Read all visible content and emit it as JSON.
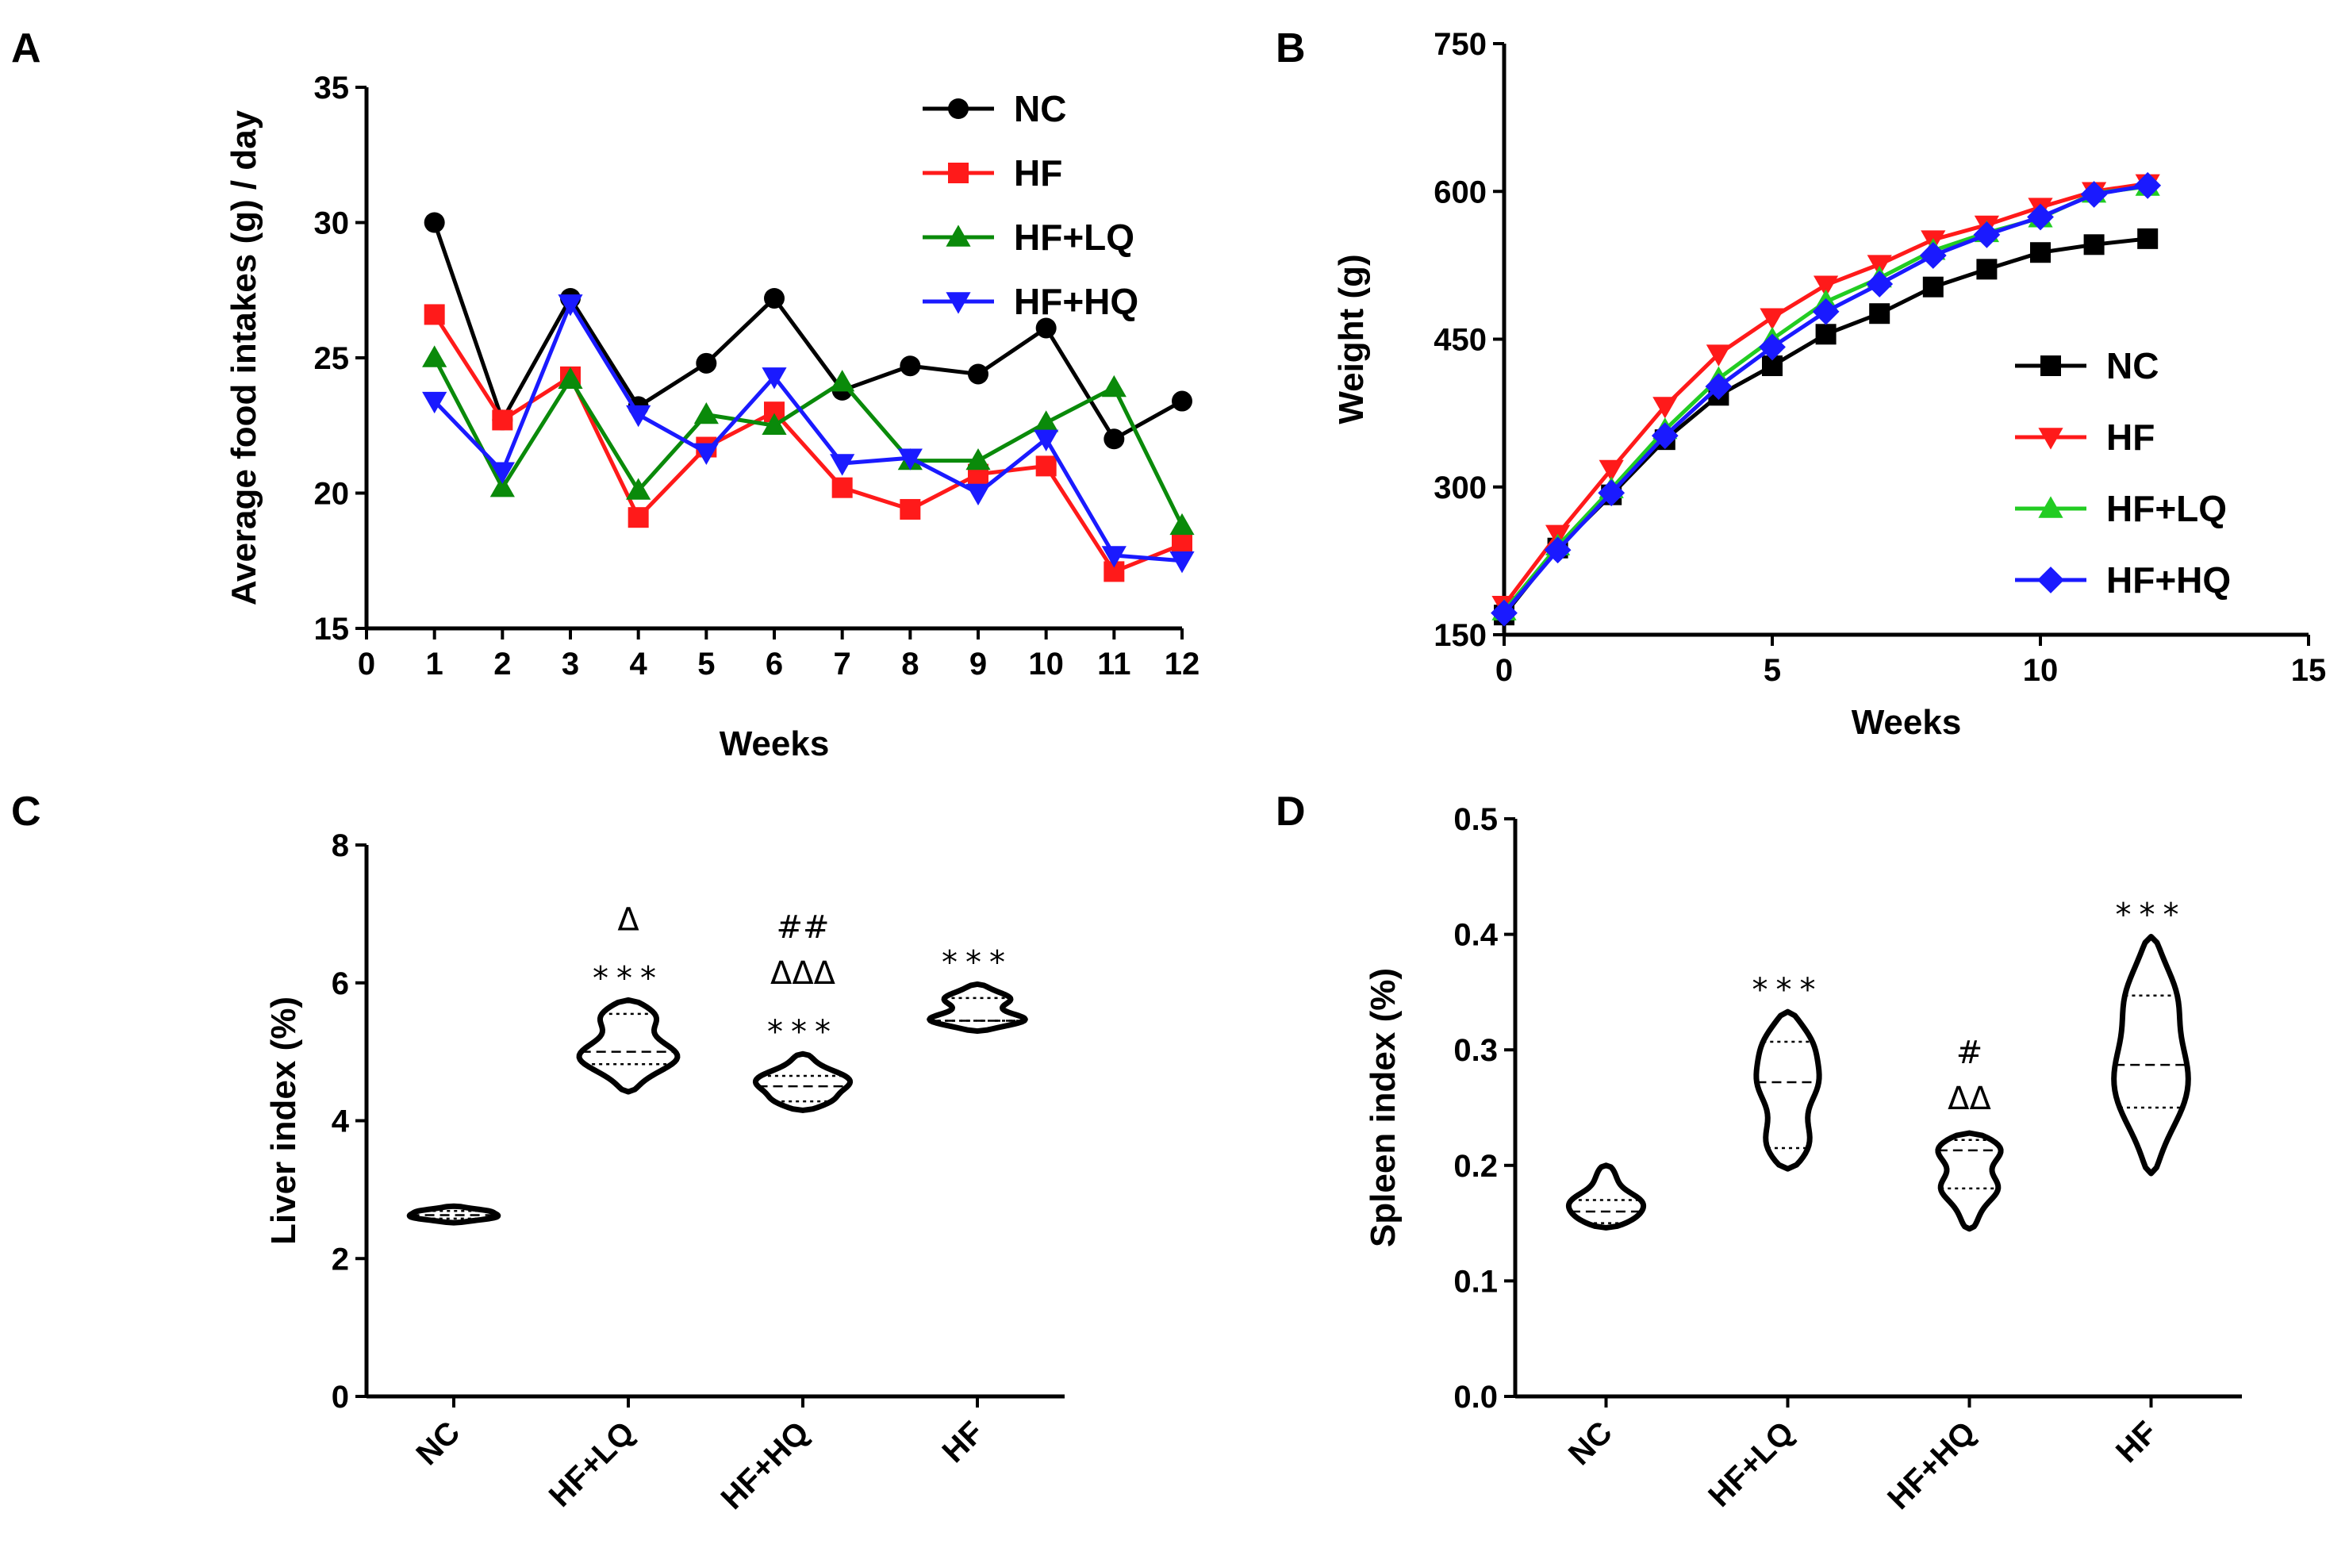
{
  "panels": {
    "A": "A",
    "B": "B",
    "C": "C",
    "D": "D"
  },
  "colors": {
    "NC": "#000000",
    "HF": "#ff1a1a",
    "HF+LQ": "#0a8a0a",
    "HF+HQ": "#1a1aff",
    "HF+LQ_B": "#22cc22"
  },
  "chart_data": [
    {
      "id": "A",
      "type": "line",
      "title": "",
      "xlabel": "Weeks",
      "ylabel": "Average food intakes (g) / day",
      "xlim": [
        0,
        12
      ],
      "ylim": [
        15,
        35
      ],
      "xticks": [
        0,
        1,
        2,
        3,
        4,
        5,
        6,
        7,
        8,
        9,
        10,
        11,
        12
      ],
      "yticks": [
        15,
        20,
        25,
        30,
        35
      ],
      "legend_position": "top-right",
      "x": [
        1,
        2,
        3,
        4,
        5,
        6,
        7,
        8,
        9,
        10,
        11,
        12
      ],
      "series": [
        {
          "name": "NC",
          "marker": "circle",
          "color": "#000000",
          "values": [
            30.0,
            22.7,
            27.2,
            23.2,
            24.8,
            27.2,
            23.8,
            24.7,
            24.4,
            26.1,
            22.0,
            23.4
          ]
        },
        {
          "name": "HF",
          "marker": "square",
          "color": "#ff1a1a",
          "values": [
            26.6,
            22.7,
            24.3,
            19.1,
            21.7,
            23.0,
            20.2,
            19.4,
            20.7,
            21.0,
            17.1,
            18.1
          ]
        },
        {
          "name": "HF+LQ",
          "marker": "triangle-up",
          "color": "#0a8a0a",
          "values": [
            25.0,
            20.2,
            24.2,
            20.1,
            22.9,
            22.5,
            24.1,
            21.2,
            21.2,
            22.6,
            23.9,
            18.8
          ]
        },
        {
          "name": "HF+HQ",
          "marker": "triangle-down",
          "color": "#1a1aff",
          "values": [
            23.4,
            20.8,
            27.0,
            22.9,
            21.5,
            24.3,
            21.1,
            21.3,
            20.0,
            22.0,
            17.7,
            17.5
          ]
        }
      ]
    },
    {
      "id": "B",
      "type": "line",
      "title": "",
      "xlabel": "Weeks",
      "ylabel": "Weight (g)",
      "xlim": [
        0,
        15
      ],
      "ylim": [
        150,
        750
      ],
      "xticks": [
        0,
        5,
        10,
        15
      ],
      "yticks": [
        150,
        300,
        450,
        600,
        750
      ],
      "legend_position": "bottom-right",
      "x": [
        0,
        1,
        2,
        3,
        4,
        5,
        6,
        7,
        8,
        9,
        10,
        11,
        12
      ],
      "series": [
        {
          "name": "NC",
          "marker": "square",
          "color": "#000000",
          "values": [
            170,
            238,
            292,
            348,
            393,
            423,
            455,
            476,
            503,
            521,
            538,
            546,
            552
          ]
        },
        {
          "name": "HF",
          "marker": "triangle-down",
          "color": "#ff1a1a",
          "values": [
            180,
            252,
            318,
            382,
            435,
            472,
            505,
            526,
            551,
            566,
            584,
            600,
            608
          ]
        },
        {
          "name": "HF+LQ",
          "marker": "triangle-up",
          "color": "#22cc22",
          "values": [
            174,
            240,
            298,
            358,
            410,
            450,
            488,
            512,
            540,
            558,
            573,
            598,
            605
          ]
        },
        {
          "name": "HF+HQ",
          "marker": "diamond",
          "color": "#1a1aff",
          "values": [
            172,
            236,
            294,
            352,
            402,
            442,
            478,
            506,
            535,
            556,
            574,
            597,
            606
          ]
        }
      ]
    },
    {
      "id": "C",
      "type": "violin",
      "title": "",
      "xlabel": "",
      "ylabel": "Liver index (%)",
      "ylim": [
        0,
        8
      ],
      "yticks": [
        0,
        2,
        4,
        6,
        8
      ],
      "categories": [
        "NC",
        "HF+LQ",
        "HF+HQ",
        "HF"
      ],
      "groups": [
        {
          "name": "NC",
          "min": 2.52,
          "max": 2.76,
          "q1": 2.58,
          "median": 2.63,
          "q3": 2.69,
          "annotations": []
        },
        {
          "name": "HF+LQ",
          "min": 4.42,
          "max": 5.75,
          "q1": 4.82,
          "median": 5.0,
          "q3": 5.55,
          "annotations": [
            "Δ",
            "***"
          ]
        },
        {
          "name": "HF+HQ",
          "min": 4.15,
          "max": 4.97,
          "q1": 4.28,
          "median": 4.5,
          "q3": 4.65,
          "annotations": [
            "##",
            "ΔΔΔ",
            "***"
          ]
        },
        {
          "name": "HF",
          "min": 5.3,
          "max": 5.98,
          "q1": 5.45,
          "median": 5.45,
          "q3": 5.78,
          "annotations": [
            "***"
          ]
        }
      ]
    },
    {
      "id": "D",
      "type": "violin",
      "title": "",
      "xlabel": "",
      "ylabel": "Spleen index (%)",
      "ylim": [
        0.0,
        0.5
      ],
      "yticks": [
        "0.0",
        "0.1",
        "0.2",
        "0.3",
        "0.4",
        "0.5"
      ],
      "categories": [
        "NC",
        "HF+LQ",
        "HF+HQ",
        "HF"
      ],
      "groups": [
        {
          "name": "NC",
          "min": 0.146,
          "max": 0.2,
          "q1": 0.15,
          "median": 0.16,
          "q3": 0.17,
          "annotations": []
        },
        {
          "name": "HF+LQ",
          "min": 0.197,
          "max": 0.333,
          "q1": 0.215,
          "median": 0.272,
          "q3": 0.307,
          "annotations": [
            "***"
          ]
        },
        {
          "name": "HF+HQ",
          "min": 0.145,
          "max": 0.228,
          "q1": 0.18,
          "median": 0.213,
          "q3": 0.222,
          "annotations": [
            "#",
            "ΔΔ"
          ]
        },
        {
          "name": "HF",
          "min": 0.193,
          "max": 0.398,
          "q1": 0.25,
          "median": 0.287,
          "q3": 0.347,
          "annotations": [
            "***"
          ]
        }
      ]
    }
  ]
}
